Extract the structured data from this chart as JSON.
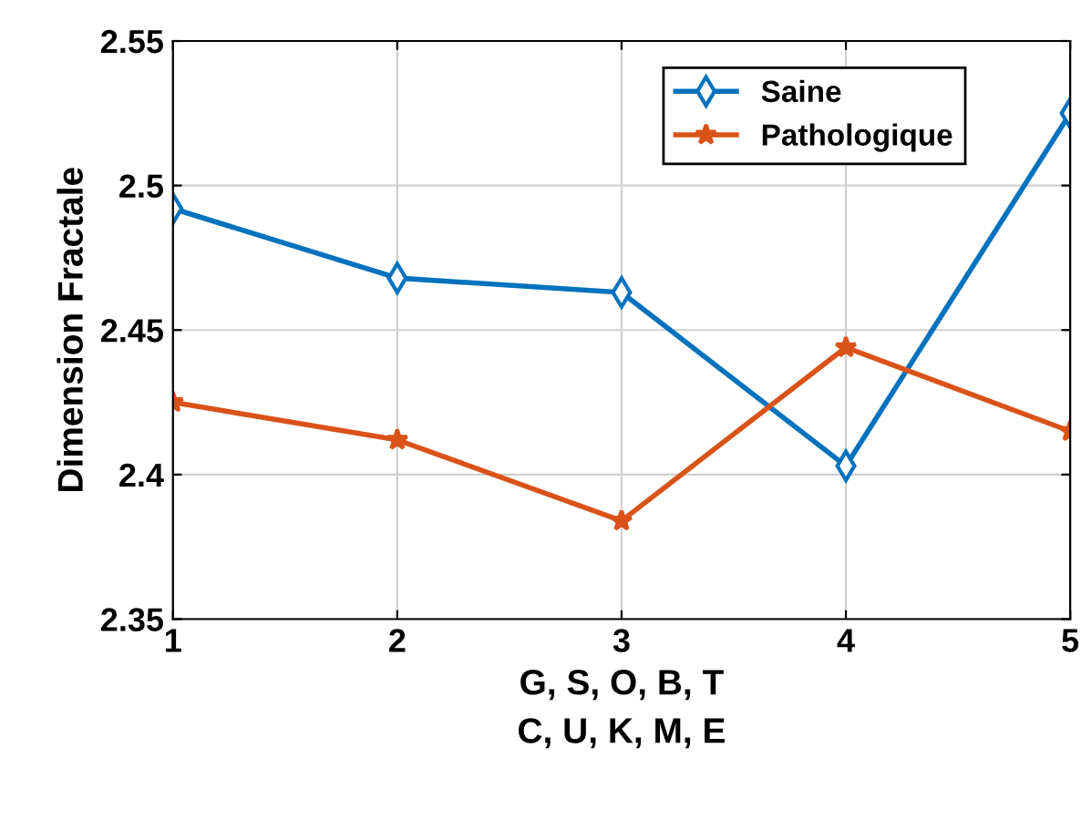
{
  "chart_data": {
    "type": "line",
    "xlabel": "G, S, O, B, T\nC, U, K, M, E",
    "ylabel": "Dimension Fractale",
    "x": [
      1,
      2,
      3,
      4,
      5
    ],
    "series": [
      {
        "name": "Saine",
        "color": "#0072bd",
        "marker": "diamond",
        "values": [
          2.492,
          2.468,
          2.463,
          2.403,
          2.525
        ]
      },
      {
        "name": "Pathologique",
        "color": "#d95319",
        "marker": "star",
        "values": [
          2.425,
          2.412,
          2.384,
          2.444,
          2.415
        ]
      }
    ],
    "xlim": [
      1,
      5
    ],
    "xticks": [
      1,
      2,
      3,
      4,
      5
    ],
    "ylim": [
      2.35,
      2.55
    ],
    "yticks": [
      2.35,
      2.4,
      2.45,
      2.5,
      2.55
    ],
    "grid": true,
    "legend": "top right",
    "line_style": "solid"
  }
}
